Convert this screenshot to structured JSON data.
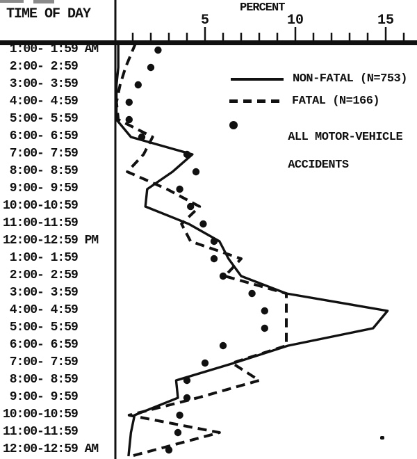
{
  "header": {
    "row_axis_title": "TIME OF DAY",
    "value_axis_title": "PERCENT"
  },
  "legend": {
    "non_fatal_label": "NON-FATAL (N=753)",
    "fatal_label": "FATAL (N=166)",
    "all_label_line1": "ALL MOTOR-VEHICLE",
    "all_label_line2": "ACCIDENTS"
  },
  "colors": {
    "ink": "#111111",
    "paper": "#ffffff",
    "artifact_grey": "#8a8a8a"
  },
  "chart_data": {
    "type": "line",
    "orientation": "horizontal",
    "title": "",
    "xlabel": "PERCENT",
    "ylabel": "TIME OF DAY",
    "xlim": [
      0,
      16.7
    ],
    "x_major_ticks": [
      5,
      10,
      15
    ],
    "x_minor_tick_step": 1,
    "grid": false,
    "legend_position": "upper-right-inside",
    "categories": [
      "1:00-1:59 AM",
      "2:00-2:59",
      "3:00-3:59",
      "4:00-4:59",
      "5:00-5:59",
      "6:00-6:59",
      "7:00-7:59",
      "8:00-8:59",
      "9:00-9:59",
      "10:00-10:59",
      "11:00-11:59",
      "12:00-12:59 PM",
      "1:00-1:59",
      "2:00-2:59",
      "3:00-3:59",
      "4:00-4:59",
      "5:00-5:59",
      "6:00-6:59",
      "7:00-7:59",
      "8:00-8:59",
      "9:00-9:59",
      "10:00-10:59",
      "11:00-11:59",
      "12:00-12:59 AM"
    ],
    "category_display": [
      " 1:00- 1:59 AM",
      " 2:00- 2:59",
      " 3:00- 3:59",
      " 4:00- 4:59",
      " 5:00- 5:59",
      " 6:00- 6:59",
      " 7:00- 7:59",
      " 8:00- 8:59",
      " 9:00- 9:59",
      "10:00-10:59",
      "11:00-11:59",
      "12:00-12:59 PM",
      " 1:00- 1:59",
      " 2:00- 2:59",
      " 3:00- 3:59",
      " 4:00- 4:59",
      " 5:00- 5:59",
      " 6:00- 6:59",
      " 7:00- 7:59",
      " 8:00- 8:59",
      " 9:00- 9:59",
      "10:00-10:59",
      "11:00-11:59",
      "12:00-12:59 AM"
    ],
    "series": [
      {
        "name": "NON-FATAL (N=753)",
        "style": "solid-line",
        "values": [
          0.2,
          0.2,
          0.1,
          0.1,
          0.1,
          0.9,
          4.3,
          3.2,
          1.8,
          1.7,
          4.1,
          5.8,
          6.3,
          7.0,
          9.5,
          15.1,
          14.3,
          9.6,
          6.6,
          3.4,
          3.5,
          1.1,
          0.9,
          0.8
        ]
      },
      {
        "name": "FATAL (N=166)",
        "style": "dashed-line",
        "values": [
          1.0,
          0.6,
          0.3,
          0.1,
          0.2,
          2.1,
          1.6,
          0.7,
          2.9,
          4.7,
          3.7,
          4.2,
          7.0,
          6.1,
          9.5,
          9.5,
          9.5,
          9.5,
          6.5,
          8.0,
          4.6,
          0.8,
          5.8,
          2.2
        ]
      },
      {
        "name": "ALL MOTOR-VEHICLE ACCIDENTS",
        "style": "dots",
        "values": [
          2.4,
          2.0,
          1.3,
          0.8,
          0.8,
          1.5,
          4.0,
          4.5,
          3.6,
          4.2,
          4.9,
          5.5,
          5.5,
          6.0,
          7.6,
          8.3,
          8.3,
          6.0,
          5.0,
          4.0,
          4.0,
          3.6,
          3.5,
          3.0
        ]
      }
    ]
  }
}
